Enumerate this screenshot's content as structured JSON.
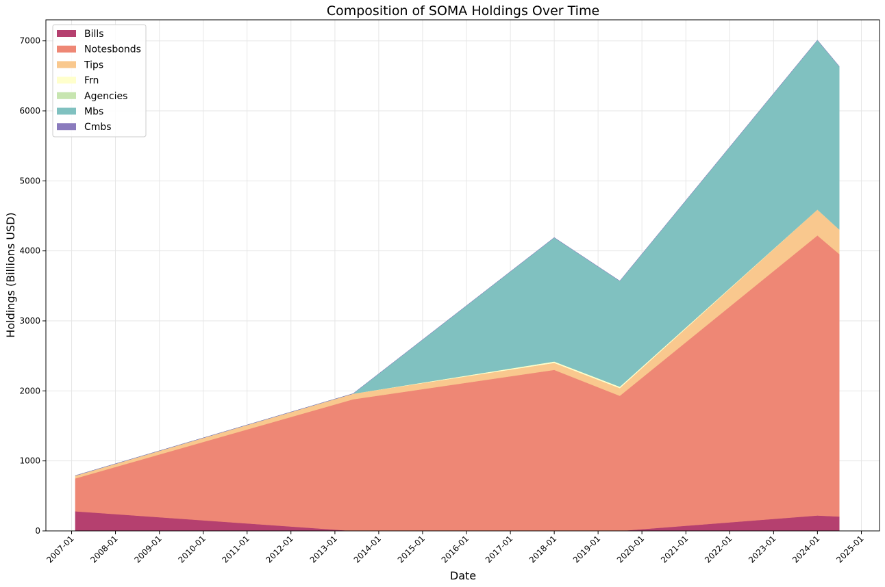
{
  "chart_data": {
    "type": "area",
    "stacked": true,
    "title": "Composition of SOMA Holdings Over Time",
    "xlabel": "Date",
    "ylabel": "Holdings (Billions USD)",
    "x": [
      "2007-02-01",
      "2013-06-01",
      "2018-01-01",
      "2019-07-01",
      "2024-01-01",
      "2024-07-01"
    ],
    "x_ticks": [
      "2007-01",
      "2008-01",
      "2009-01",
      "2010-01",
      "2011-01",
      "2012-01",
      "2013-01",
      "2014-01",
      "2015-01",
      "2016-01",
      "2017-01",
      "2018-01",
      "2019-01",
      "2020-01",
      "2021-01",
      "2022-01",
      "2023-01",
      "2024-01",
      "2025-01"
    ],
    "xlim": [
      "2006-06-01",
      "2025-06-01"
    ],
    "ylim": [
      0,
      7300
    ],
    "y_ticks": [
      0,
      1000,
      2000,
      3000,
      4000,
      5000,
      6000,
      7000
    ],
    "grid": true,
    "legend_position": "top-left",
    "series": [
      {
        "name": "Bills",
        "color": "#b5406f",
        "values": [
          280,
          0,
          0,
          0,
          220,
          205
        ]
      },
      {
        "name": "Notesbonds",
        "color": "#ee8775",
        "values": [
          470,
          1880,
          2300,
          1930,
          4000,
          3750
        ]
      },
      {
        "name": "Tips",
        "color": "#f9c88e",
        "values": [
          40,
          80,
          100,
          110,
          370,
          350
        ]
      },
      {
        "name": "Frn",
        "color": "#ffffcc",
        "values": [
          0,
          0,
          20,
          20,
          0,
          0
        ]
      },
      {
        "name": "Agencies",
        "color": "#c7e5b0",
        "values": [
          0,
          0,
          0,
          0,
          0,
          0
        ]
      },
      {
        "name": "Mbs",
        "color": "#80c1c0",
        "values": [
          0,
          0,
          1770,
          1510,
          2420,
          2330
        ]
      },
      {
        "name": "Cmbs",
        "color": "#8a7bbd",
        "values": [
          0,
          0,
          0,
          0,
          0,
          0
        ]
      }
    ]
  }
}
